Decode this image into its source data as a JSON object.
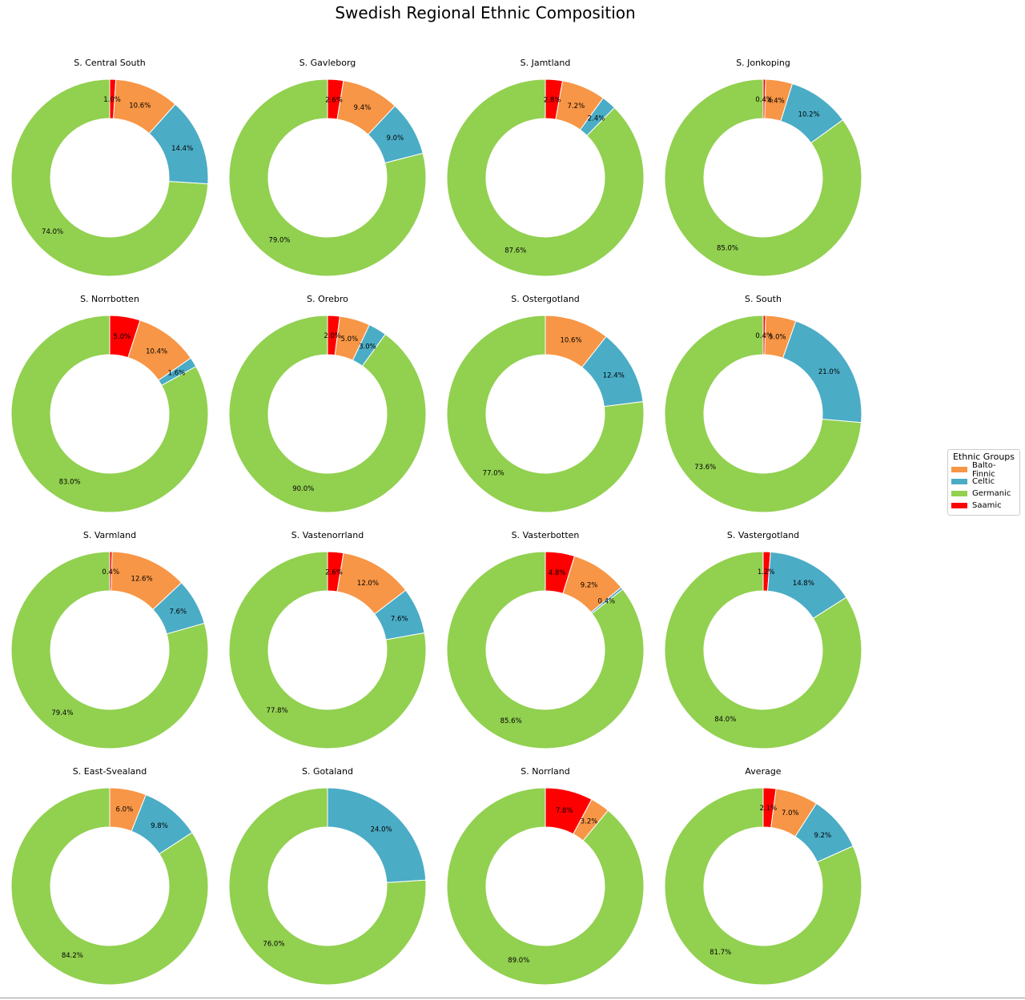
{
  "chart_data": {
    "type": "pie",
    "variant": "donut",
    "title": "Swedish Regional Ethnic Composition",
    "groups": [
      "Balto-Finnic",
      "Celtic",
      "Germanic",
      "Saamic"
    ],
    "colors": {
      "Balto-Finnic": "#f79646",
      "Celtic": "#4bacc6",
      "Germanic": "#92d050",
      "Saamic": "#ff0000"
    },
    "legend": {
      "title": "Ethnic Groups",
      "position": "right"
    },
    "start_angle": 90,
    "direction": "clockwise",
    "slice_order": [
      "Saamic",
      "Balto-Finnic",
      "Celtic",
      "Germanic"
    ],
    "pies": [
      {
        "name": "S. Central South",
        "values": {
          "Saamic": 1.0,
          "Balto-Finnic": 10.6,
          "Celtic": 14.4,
          "Germanic": 74.0
        }
      },
      {
        "name": "S. Gavleborg",
        "values": {
          "Saamic": 2.6,
          "Balto-Finnic": 9.4,
          "Celtic": 9.0,
          "Germanic": 79.0
        }
      },
      {
        "name": "S. Jamtland",
        "values": {
          "Saamic": 2.8,
          "Balto-Finnic": 7.2,
          "Celtic": 2.4,
          "Germanic": 87.6
        }
      },
      {
        "name": "S. Jonkoping",
        "values": {
          "Saamic": 0.4,
          "Balto-Finnic": 4.4,
          "Celtic": 10.2,
          "Germanic": 85.0
        }
      },
      {
        "name": "S. Norrbotten",
        "values": {
          "Saamic": 5.0,
          "Balto-Finnic": 10.4,
          "Celtic": 1.6,
          "Germanic": 83.0
        }
      },
      {
        "name": "S. Orebro",
        "values": {
          "Saamic": 2.0,
          "Balto-Finnic": 5.0,
          "Celtic": 3.0,
          "Germanic": 90.0
        }
      },
      {
        "name": "S. Ostergotland",
        "values": {
          "Balto-Finnic": 10.6,
          "Celtic": 12.4,
          "Germanic": 77.0
        }
      },
      {
        "name": "S. South",
        "values": {
          "Saamic": 0.4,
          "Balto-Finnic": 5.0,
          "Celtic": 21.0,
          "Germanic": 73.6
        }
      },
      {
        "name": "S. Varmland",
        "values": {
          "Saamic": 0.4,
          "Balto-Finnic": 12.6,
          "Celtic": 7.6,
          "Germanic": 79.4
        }
      },
      {
        "name": "S. Vastenorrland",
        "values": {
          "Saamic": 2.6,
          "Balto-Finnic": 12.0,
          "Celtic": 7.6,
          "Germanic": 77.8
        }
      },
      {
        "name": "S. Vasterbotten",
        "values": {
          "Saamic": 4.8,
          "Balto-Finnic": 9.2,
          "Celtic": 0.4,
          "Germanic": 85.6
        }
      },
      {
        "name": "S. Vastergotland",
        "values": {
          "Saamic": 1.2,
          "Celtic": 14.8,
          "Germanic": 84.0
        }
      },
      {
        "name": "S. East-Svealand",
        "values": {
          "Balto-Finnic": 6.0,
          "Celtic": 9.8,
          "Germanic": 84.2
        }
      },
      {
        "name": "S. Gotaland",
        "values": {
          "Celtic": 24.0,
          "Germanic": 76.0
        }
      },
      {
        "name": "S. Norrland",
        "values": {
          "Saamic": 7.8,
          "Balto-Finnic": 3.2,
          "Germanic": 89.0
        }
      },
      {
        "name": "Average",
        "values": {
          "Saamic": 2.1,
          "Balto-Finnic": 7.0,
          "Celtic": 9.2,
          "Germanic": 81.7
        }
      }
    ]
  }
}
